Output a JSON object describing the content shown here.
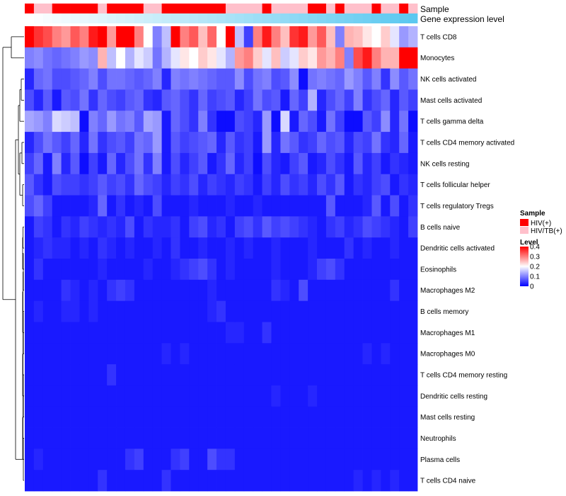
{
  "chart_data": {
    "type": "heatmap",
    "title": "",
    "annotation_tracks": [
      "Sample",
      "Gene expression level"
    ],
    "sample_groups": [
      "HIV(+)",
      "HIV/TB(+)"
    ],
    "sample_group_colors": {
      "HIV(+)": "#ff0000",
      "HIV/TB(+)": "#ffc0cb"
    },
    "gene_expression_gradient": [
      "#ffffff",
      "#5bc8f0"
    ],
    "rows": [
      "T cells CD8",
      "Monocytes",
      "NK cells activated",
      "Mast cells activated",
      "T cells gamma delta",
      "T cells CD4 memory activated",
      "NK cells resting",
      "T cells follicular helper",
      "T cells regulatory  Tregs",
      "B cells naive",
      "Dendritic cells activated",
      "Eosinophils",
      "Macrophages M2",
      "B cells memory",
      "Macrophages M1",
      "Macrophages M0",
      "T cells CD4 memory resting",
      "Dendritic cells resting",
      "Mast cells resting",
      "Neutrophils",
      "Plasma cells",
      "T cells CD4 naive"
    ],
    "n_samples": 43,
    "sample_annotation": [
      "HIV(+)",
      "HIV/TB(+)",
      "HIV/TB(+)",
      "HIV(+)",
      "HIV(+)",
      "HIV(+)",
      "HIV(+)",
      "HIV(+)",
      "HIV/TB(+)",
      "HIV(+)",
      "HIV(+)",
      "HIV(+)",
      "HIV(+)",
      "HIV/TB(+)",
      "HIV/TB(+)",
      "HIV(+)",
      "HIV(+)",
      "HIV(+)",
      "HIV(+)",
      "HIV(+)",
      "HIV(+)",
      "HIV(+)",
      "HIV/TB(+)",
      "HIV/TB(+)",
      "HIV/TB(+)",
      "HIV/TB(+)",
      "HIV(+)",
      "HIV/TB(+)",
      "HIV/TB(+)",
      "HIV/TB(+)",
      "HIV/TB(+)",
      "HIV(+)",
      "HIV(+)",
      "HIV/TB(+)",
      "HIV(+)",
      "HIV/TB(+)",
      "HIV/TB(+)",
      "HIV/TB(+)",
      "HIV(+)",
      "HIV/TB(+)",
      "HIV/TB(+)",
      "HIV(+)",
      "HIV/TB(+)"
    ],
    "values": [
      [
        0.4,
        0.36,
        0.34,
        0.3,
        0.28,
        0.33,
        0.3,
        0.38,
        0.4,
        0.28,
        0.4,
        0.4,
        0.3,
        0.2,
        0.1,
        0.15,
        0.4,
        0.3,
        0.33,
        0.25,
        0.32,
        0.2,
        0.4,
        0.15,
        0.05,
        0.3,
        0.38,
        0.3,
        0.25,
        0.36,
        0.38,
        0.28,
        0.33,
        0.25,
        0.1,
        0.26,
        0.25,
        0.22,
        0.2,
        0.24,
        0.18,
        0.12,
        0.14
      ],
      [
        0.1,
        0.11,
        0.09,
        0.08,
        0.09,
        0.1,
        0.12,
        0.11,
        0.26,
        0.15,
        0.2,
        0.14,
        0.18,
        0.16,
        0.09,
        0.14,
        0.18,
        0.22,
        0.2,
        0.24,
        0.22,
        0.18,
        0.14,
        0.28,
        0.3,
        0.24,
        0.18,
        0.25,
        0.16,
        0.18,
        0.24,
        0.22,
        0.28,
        0.26,
        0.3,
        0.1,
        0.34,
        0.38,
        0.3,
        0.26,
        0.26,
        0.4,
        0.4
      ],
      [
        0.03,
        0.08,
        0.09,
        0.06,
        0.06,
        0.07,
        0.08,
        0.1,
        0.06,
        0.09,
        0.09,
        0.08,
        0.07,
        0.08,
        0.1,
        0.03,
        0.1,
        0.09,
        0.1,
        0.09,
        0.08,
        0.07,
        0.07,
        0.11,
        0.06,
        0.09,
        0.1,
        0.06,
        0.07,
        0.11,
        0.01,
        0.09,
        0.1,
        0.09,
        0.08,
        0.12,
        0.1,
        0.07,
        0.1,
        0.04,
        0.11,
        0.07,
        0.09
      ],
      [
        0.06,
        0.03,
        0.07,
        0.02,
        0.07,
        0.06,
        0.09,
        0.04,
        0.08,
        0.06,
        0.05,
        0.07,
        0.08,
        0.04,
        0.03,
        0.07,
        0.08,
        0.06,
        0.04,
        0.08,
        0.05,
        0.06,
        0.07,
        0.03,
        0.05,
        0.09,
        0.06,
        0.07,
        0.02,
        0.08,
        0.05,
        0.14,
        0.03,
        0.06,
        0.08,
        0.05,
        0.1,
        0.04,
        0.06,
        0.08,
        0.03,
        0.07,
        0.05
      ],
      [
        0.13,
        0.12,
        0.1,
        0.17,
        0.16,
        0.15,
        0.01,
        0.1,
        0.08,
        0.12,
        0.09,
        0.1,
        0.07,
        0.13,
        0.12,
        0.02,
        0.08,
        0.06,
        0.04,
        0.1,
        0.04,
        0.01,
        0.01,
        0.06,
        0.05,
        0.03,
        0.12,
        0.01,
        0.17,
        0.02,
        0.08,
        0.06,
        0.02,
        0.09,
        0.05,
        0.01,
        0.01,
        0.07,
        0.05,
        0.11,
        0.03,
        0.09,
        0.01
      ],
      [
        0.03,
        0.06,
        0.09,
        0.07,
        0.05,
        0.08,
        0.03,
        0.09,
        0.04,
        0.06,
        0.07,
        0.05,
        0.09,
        0.08,
        0.12,
        0.02,
        0.07,
        0.05,
        0.06,
        0.07,
        0.08,
        0.03,
        0.07,
        0.04,
        0.05,
        0.02,
        0.12,
        0.03,
        0.09,
        0.07,
        0.04,
        0.05,
        0.08,
        0.06,
        0.07,
        0.03,
        0.06,
        0.05,
        0.09,
        0.04,
        0.03,
        0.08,
        0.02
      ],
      [
        0.05,
        0.08,
        0.02,
        0.1,
        0.03,
        0.07,
        0.01,
        0.05,
        0.02,
        0.08,
        0.03,
        0.06,
        0.09,
        0.04,
        0.1,
        0.02,
        0.06,
        0.03,
        0.05,
        0.07,
        0.02,
        0.04,
        0.08,
        0.03,
        0.05,
        0.01,
        0.06,
        0.03,
        0.02,
        0.05,
        0.07,
        0.02,
        0.03,
        0.06,
        0.04,
        0.02,
        0.07,
        0.03,
        0.05,
        0.02,
        0.04,
        0.03,
        0.02
      ],
      [
        0.07,
        0.04,
        0.02,
        0.06,
        0.05,
        0.05,
        0.04,
        0.05,
        0.07,
        0.05,
        0.06,
        0.04,
        0.08,
        0.06,
        0.05,
        0.03,
        0.05,
        0.04,
        0.06,
        0.03,
        0.05,
        0.04,
        0.03,
        0.05,
        0.04,
        0.02,
        0.05,
        0.03,
        0.06,
        0.04,
        0.05,
        0.03,
        0.06,
        0.04,
        0.07,
        0.02,
        0.04,
        0.03,
        0.05,
        0.06,
        0.02,
        0.04,
        0.03
      ],
      [
        0.06,
        0.08,
        0.05,
        0.02,
        0.02,
        0.02,
        0.02,
        0.03,
        0.08,
        0.02,
        0.04,
        0.02,
        0.03,
        0.02,
        0.06,
        0.02,
        0.02,
        0.02,
        0.03,
        0.02,
        0.02,
        0.02,
        0.03,
        0.02,
        0.02,
        0.03,
        0.02,
        0.02,
        0.02,
        0.02,
        0.02,
        0.02,
        0.02,
        0.07,
        0.02,
        0.02,
        0.02,
        0.03,
        0.07,
        0.02,
        0.06,
        0.02,
        0.04
      ],
      [
        0.02,
        0.05,
        0.04,
        0.02,
        0.04,
        0.03,
        0.05,
        0.04,
        0.03,
        0.04,
        0.03,
        0.06,
        0.02,
        0.04,
        0.03,
        0.03,
        0.04,
        0.02,
        0.05,
        0.06,
        0.03,
        0.04,
        0.02,
        0.05,
        0.06,
        0.04,
        0.07,
        0.05,
        0.06,
        0.05,
        0.04,
        0.03,
        0.02,
        0.04,
        0.05,
        0.03,
        0.04,
        0.06,
        0.05,
        0.04,
        0.03,
        0.02,
        0.05
      ],
      [
        0.02,
        0.03,
        0.04,
        0.03,
        0.03,
        0.02,
        0.03,
        0.02,
        0.04,
        0.03,
        0.02,
        0.03,
        0.02,
        0.02,
        0.03,
        0.02,
        0.04,
        0.02,
        0.02,
        0.03,
        0.02,
        0.02,
        0.03,
        0.02,
        0.03,
        0.02,
        0.02,
        0.03,
        0.02,
        0.02,
        0.02,
        0.03,
        0.02,
        0.02,
        0.02,
        0.04,
        0.02,
        0.03,
        0.02,
        0.02,
        0.03,
        0.02,
        0.02
      ],
      [
        0.02,
        0.04,
        0.02,
        0.02,
        0.02,
        0.02,
        0.02,
        0.02,
        0.03,
        0.02,
        0.02,
        0.02,
        0.02,
        0.03,
        0.02,
        0.02,
        0.03,
        0.04,
        0.05,
        0.06,
        0.04,
        0.02,
        0.03,
        0.02,
        0.02,
        0.02,
        0.02,
        0.03,
        0.02,
        0.02,
        0.02,
        0.03,
        0.05,
        0.06,
        0.04,
        0.02,
        0.02,
        0.02,
        0.02,
        0.02,
        0.02,
        0.02,
        0.02
      ],
      [
        0.02,
        0.02,
        0.02,
        0.02,
        0.04,
        0.03,
        0.02,
        0.03,
        0.02,
        0.04,
        0.05,
        0.04,
        0.02,
        0.02,
        0.02,
        0.02,
        0.02,
        0.02,
        0.02,
        0.02,
        0.03,
        0.02,
        0.02,
        0.02,
        0.02,
        0.02,
        0.02,
        0.04,
        0.03,
        0.02,
        0.06,
        0.02,
        0.02,
        0.02,
        0.02,
        0.02,
        0.02,
        0.02,
        0.02,
        0.02,
        0.04,
        0.02,
        0.02
      ],
      [
        0.02,
        0.03,
        0.02,
        0.02,
        0.03,
        0.03,
        0.02,
        0.03,
        0.02,
        0.02,
        0.02,
        0.02,
        0.02,
        0.02,
        0.02,
        0.02,
        0.02,
        0.02,
        0.02,
        0.02,
        0.03,
        0.04,
        0.02,
        0.02,
        0.02,
        0.02,
        0.02,
        0.02,
        0.02,
        0.02,
        0.02,
        0.02,
        0.02,
        0.02,
        0.02,
        0.02,
        0.02,
        0.02,
        0.02,
        0.02,
        0.02,
        0.02,
        0.02
      ],
      [
        0.02,
        0.02,
        0.02,
        0.02,
        0.02,
        0.02,
        0.02,
        0.02,
        0.02,
        0.02,
        0.02,
        0.02,
        0.02,
        0.02,
        0.02,
        0.02,
        0.02,
        0.02,
        0.02,
        0.02,
        0.02,
        0.02,
        0.03,
        0.03,
        0.02,
        0.02,
        0.04,
        0.02,
        0.02,
        0.02,
        0.02,
        0.02,
        0.02,
        0.02,
        0.02,
        0.02,
        0.02,
        0.02,
        0.02,
        0.02,
        0.02,
        0.02,
        0.02
      ],
      [
        0.02,
        0.02,
        0.02,
        0.02,
        0.02,
        0.02,
        0.02,
        0.02,
        0.02,
        0.02,
        0.02,
        0.02,
        0.02,
        0.02,
        0.02,
        0.03,
        0.02,
        0.03,
        0.02,
        0.02,
        0.02,
        0.02,
        0.02,
        0.02,
        0.02,
        0.02,
        0.02,
        0.02,
        0.02,
        0.02,
        0.02,
        0.02,
        0.02,
        0.02,
        0.02,
        0.02,
        0.02,
        0.03,
        0.02,
        0.03,
        0.02,
        0.02,
        0.02
      ],
      [
        0.02,
        0.02,
        0.02,
        0.02,
        0.02,
        0.02,
        0.02,
        0.02,
        0.02,
        0.04,
        0.02,
        0.02,
        0.02,
        0.02,
        0.02,
        0.02,
        0.02,
        0.02,
        0.02,
        0.02,
        0.02,
        0.02,
        0.02,
        0.02,
        0.02,
        0.02,
        0.02,
        0.02,
        0.02,
        0.02,
        0.02,
        0.02,
        0.02,
        0.02,
        0.02,
        0.02,
        0.02,
        0.02,
        0.02,
        0.02,
        0.02,
        0.02,
        0.02
      ],
      [
        0.02,
        0.02,
        0.02,
        0.02,
        0.02,
        0.02,
        0.02,
        0.02,
        0.02,
        0.02,
        0.02,
        0.02,
        0.02,
        0.02,
        0.02,
        0.02,
        0.02,
        0.02,
        0.02,
        0.02,
        0.02,
        0.02,
        0.02,
        0.02,
        0.02,
        0.02,
        0.02,
        0.03,
        0.02,
        0.02,
        0.02,
        0.03,
        0.02,
        0.02,
        0.02,
        0.02,
        0.02,
        0.02,
        0.02,
        0.02,
        0.02,
        0.02,
        0.02
      ],
      [
        0.02,
        0.02,
        0.02,
        0.02,
        0.02,
        0.02,
        0.02,
        0.02,
        0.02,
        0.02,
        0.02,
        0.02,
        0.02,
        0.02,
        0.02,
        0.02,
        0.02,
        0.02,
        0.02,
        0.02,
        0.02,
        0.02,
        0.02,
        0.02,
        0.02,
        0.02,
        0.02,
        0.02,
        0.02,
        0.02,
        0.02,
        0.02,
        0.02,
        0.02,
        0.02,
        0.02,
        0.02,
        0.02,
        0.02,
        0.02,
        0.02,
        0.02,
        0.02
      ],
      [
        0.02,
        0.02,
        0.02,
        0.02,
        0.02,
        0.02,
        0.02,
        0.02,
        0.02,
        0.02,
        0.02,
        0.02,
        0.02,
        0.02,
        0.02,
        0.02,
        0.02,
        0.02,
        0.02,
        0.02,
        0.02,
        0.02,
        0.02,
        0.02,
        0.02,
        0.02,
        0.02,
        0.02,
        0.02,
        0.02,
        0.02,
        0.02,
        0.02,
        0.02,
        0.02,
        0.02,
        0.02,
        0.02,
        0.02,
        0.02,
        0.02,
        0.02,
        0.02
      ],
      [
        0.02,
        0.03,
        0.02,
        0.02,
        0.02,
        0.02,
        0.02,
        0.02,
        0.02,
        0.02,
        0.02,
        0.04,
        0.05,
        0.02,
        0.02,
        0.02,
        0.04,
        0.05,
        0.02,
        0.02,
        0.06,
        0.04,
        0.04,
        0.02,
        0.02,
        0.02,
        0.02,
        0.02,
        0.02,
        0.02,
        0.02,
        0.02,
        0.02,
        0.02,
        0.02,
        0.02,
        0.02,
        0.02,
        0.02,
        0.02,
        0.02,
        0.02,
        0.02
      ],
      [
        0.02,
        0.02,
        0.02,
        0.02,
        0.02,
        0.02,
        0.02,
        0.02,
        0.04,
        0.02,
        0.02,
        0.02,
        0.02,
        0.02,
        0.02,
        0.04,
        0.02,
        0.02,
        0.02,
        0.02,
        0.02,
        0.02,
        0.02,
        0.02,
        0.02,
        0.02,
        0.02,
        0.02,
        0.02,
        0.02,
        0.02,
        0.02,
        0.02,
        0.02,
        0.02,
        0.02,
        0.03,
        0.02,
        0.03,
        0.02,
        0.03,
        0.02,
        0.02
      ]
    ],
    "color_scale": {
      "min": 0,
      "max": 0.4,
      "low_color": "#0000ff",
      "mid_color": "#ffffff",
      "high_color": "#ff0000",
      "ticks": [
        "0",
        "0.1",
        "0.2",
        "0.3",
        "0.4"
      ]
    },
    "legend": {
      "sample_title": "Sample",
      "sample_items": [
        "HIV(+)",
        "HIV/TB(+)"
      ],
      "level_title": "Level",
      "placement": "right"
    },
    "dendrogram": "rows"
  }
}
